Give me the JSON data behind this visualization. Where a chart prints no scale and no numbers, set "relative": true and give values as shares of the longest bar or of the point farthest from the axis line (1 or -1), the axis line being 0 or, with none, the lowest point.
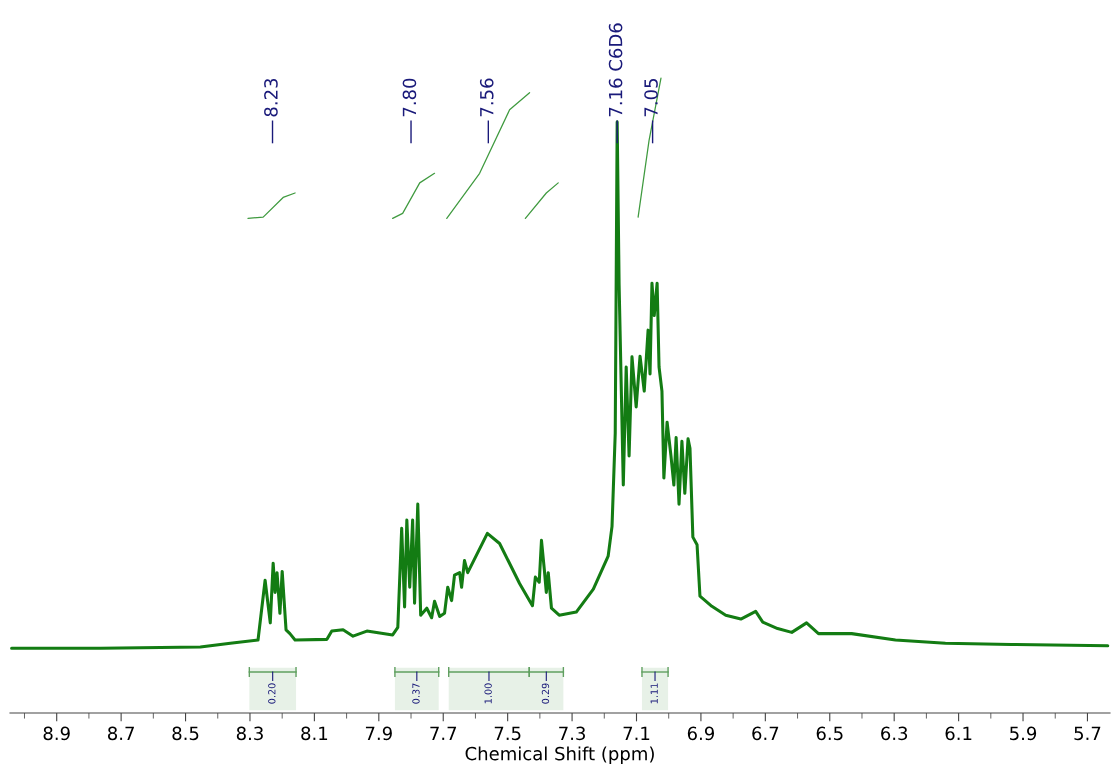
{
  "chart_data": {
    "type": "line",
    "relative": true,
    "xlabel": "Chemical Shift (ppm)",
    "xlim": [
      9.045,
      5.63
    ],
    "xticks": [
      {
        "value": 9.0,
        "label": null
      },
      8.9,
      {
        "value": 8.8,
        "label": null
      },
      8.7,
      {
        "value": 8.6,
        "label": null
      },
      8.5,
      {
        "value": 8.4,
        "label": null
      },
      8.3,
      {
        "value": 8.2,
        "label": null
      },
      8.1,
      {
        "value": 8.0,
        "label": null
      },
      7.9,
      {
        "value": 7.8,
        "label": null
      },
      7.7,
      {
        "value": 7.6,
        "label": null
      },
      7.5,
      {
        "value": 7.4,
        "label": null
      },
      7.3,
      {
        "value": 7.2,
        "label": null
      },
      7.1,
      {
        "value": 7.0,
        "label": null
      },
      6.9,
      {
        "value": 6.8,
        "label": null
      },
      6.7,
      {
        "value": 6.6,
        "label": null
      },
      6.5,
      {
        "value": 6.4,
        "label": null
      },
      6.3,
      {
        "value": 6.2,
        "label": null
      },
      6.1,
      {
        "value": 6.0,
        "label": null
      },
      5.9,
      {
        "value": 5.8,
        "label": null
      },
      5.7
    ],
    "series": [
      {
        "color": "#137c13",
        "x": [
          9.04,
          8.764,
          8.454,
          8.361,
          8.275,
          8.253,
          8.237,
          8.228,
          8.222,
          8.216,
          8.207,
          8.2,
          8.188,
          8.176,
          8.16,
          8.061,
          8.046,
          8.011,
          7.98,
          7.937,
          7.857,
          7.841,
          7.829,
          7.82,
          7.813,
          7.804,
          7.795,
          7.789,
          7.779,
          7.77,
          7.751,
          7.736,
          7.727,
          7.711,
          7.696,
          7.686,
          7.674,
          7.665,
          7.649,
          7.643,
          7.634,
          7.624,
          7.563,
          7.525,
          7.463,
          7.423,
          7.414,
          7.402,
          7.395,
          7.386,
          7.38,
          7.374,
          7.364,
          7.34,
          7.287,
          7.234,
          7.188,
          7.176,
          7.166,
          7.16,
          7.154,
          7.141,
          7.132,
          7.123,
          7.114,
          7.101,
          7.089,
          7.076,
          7.064,
          7.058,
          7.052,
          7.045,
          7.036,
          7.03,
          7.021,
          7.015,
          7.005,
          6.993,
          6.984,
          6.977,
          6.968,
          6.959,
          6.95,
          6.94,
          6.934,
          6.925,
          6.912,
          6.903,
          6.866,
          6.823,
          6.776,
          6.73,
          6.708,
          6.662,
          6.618,
          6.572,
          6.535,
          6.432,
          6.296,
          6.141,
          5.937,
          5.637
        ],
        "values": [
          0.102,
          0.102,
          0.104,
          0.11,
          0.115,
          0.209,
          0.142,
          0.236,
          0.19,
          0.221,
          0.157,
          0.223,
          0.131,
          0.125,
          0.115,
          0.116,
          0.129,
          0.131,
          0.121,
          0.129,
          0.123,
          0.135,
          0.291,
          0.167,
          0.304,
          0.198,
          0.304,
          0.173,
          0.329,
          0.154,
          0.165,
          0.15,
          0.176,
          0.152,
          0.157,
          0.198,
          0.177,
          0.217,
          0.221,
          0.198,
          0.24,
          0.221,
          0.283,
          0.267,
          0.204,
          0.169,
          0.214,
          0.206,
          0.272,
          0.225,
          0.19,
          0.221,
          0.165,
          0.154,
          0.159,
          0.195,
          0.247,
          0.294,
          0.441,
          0.931,
          0.674,
          0.359,
          0.545,
          0.405,
          0.561,
          0.482,
          0.562,
          0.507,
          0.603,
          0.534,
          0.677,
          0.626,
          0.677,
          0.545,
          0.507,
          0.37,
          0.458,
          0.405,
          0.359,
          0.434,
          0.329,
          0.428,
          0.346,
          0.432,
          0.417,
          0.277,
          0.265,
          0.184,
          0.168,
          0.154,
          0.148,
          0.16,
          0.143,
          0.133,
          0.127,
          0.142,
          0.125,
          0.125,
          0.115,
          0.11,
          0.108,
          0.106
        ]
      },
      {
        "color": "#3f9a3f",
        "x": [
          8.306,
          8.259,
          8.197,
          8.16
        ],
        "values": [
          0.779,
          0.781,
          0.812,
          0.819
        ]
      },
      {
        "color": "#3f9a3f",
        "x": [
          7.857,
          7.826,
          7.773,
          7.727
        ],
        "values": [
          0.779,
          0.787,
          0.835,
          0.85
        ]
      },
      {
        "color": "#3f9a3f",
        "x": [
          7.689,
          7.587,
          7.494,
          7.432
        ],
        "values": [
          0.779,
          0.85,
          0.95,
          0.977
        ]
      },
      {
        "color": "#3f9a3f",
        "x": [
          7.445,
          7.38,
          7.343
        ],
        "values": [
          0.779,
          0.819,
          0.835
        ]
      },
      {
        "color": "#3f9a3f",
        "x": [
          7.095,
          7.061,
          7.024
        ],
        "values": [
          0.781,
          0.902,
          1.0
        ]
      }
    ],
    "annotations": [
      {
        "text": "8.23",
        "x": 8.23
      },
      {
        "text": "7.80",
        "x": 7.8
      },
      {
        "text": "7.56",
        "x": 7.56
      },
      {
        "text": "7.16 C6D6",
        "x": 7.16
      },
      {
        "text": "7.05",
        "x": 7.05
      }
    ],
    "bands": [
      {
        "axis": "x",
        "from": 8.302,
        "to": 8.157,
        "label": "0.20",
        "color": "#5f9f5f"
      },
      {
        "axis": "x",
        "from": 7.85,
        "to": 7.714,
        "label": "0.37",
        "color": "#5f9f5f"
      },
      {
        "axis": "x",
        "from": 7.683,
        "to": 7.433,
        "label": "1.00",
        "color": "#5f9f5f"
      },
      {
        "axis": "x",
        "from": 7.433,
        "to": 7.327,
        "label": "0.29",
        "color": "#5f9f5f"
      },
      {
        "axis": "x",
        "from": 7.083,
        "to": 7.002,
        "label": "1.11",
        "color": "#5f9f5f"
      }
    ]
  }
}
